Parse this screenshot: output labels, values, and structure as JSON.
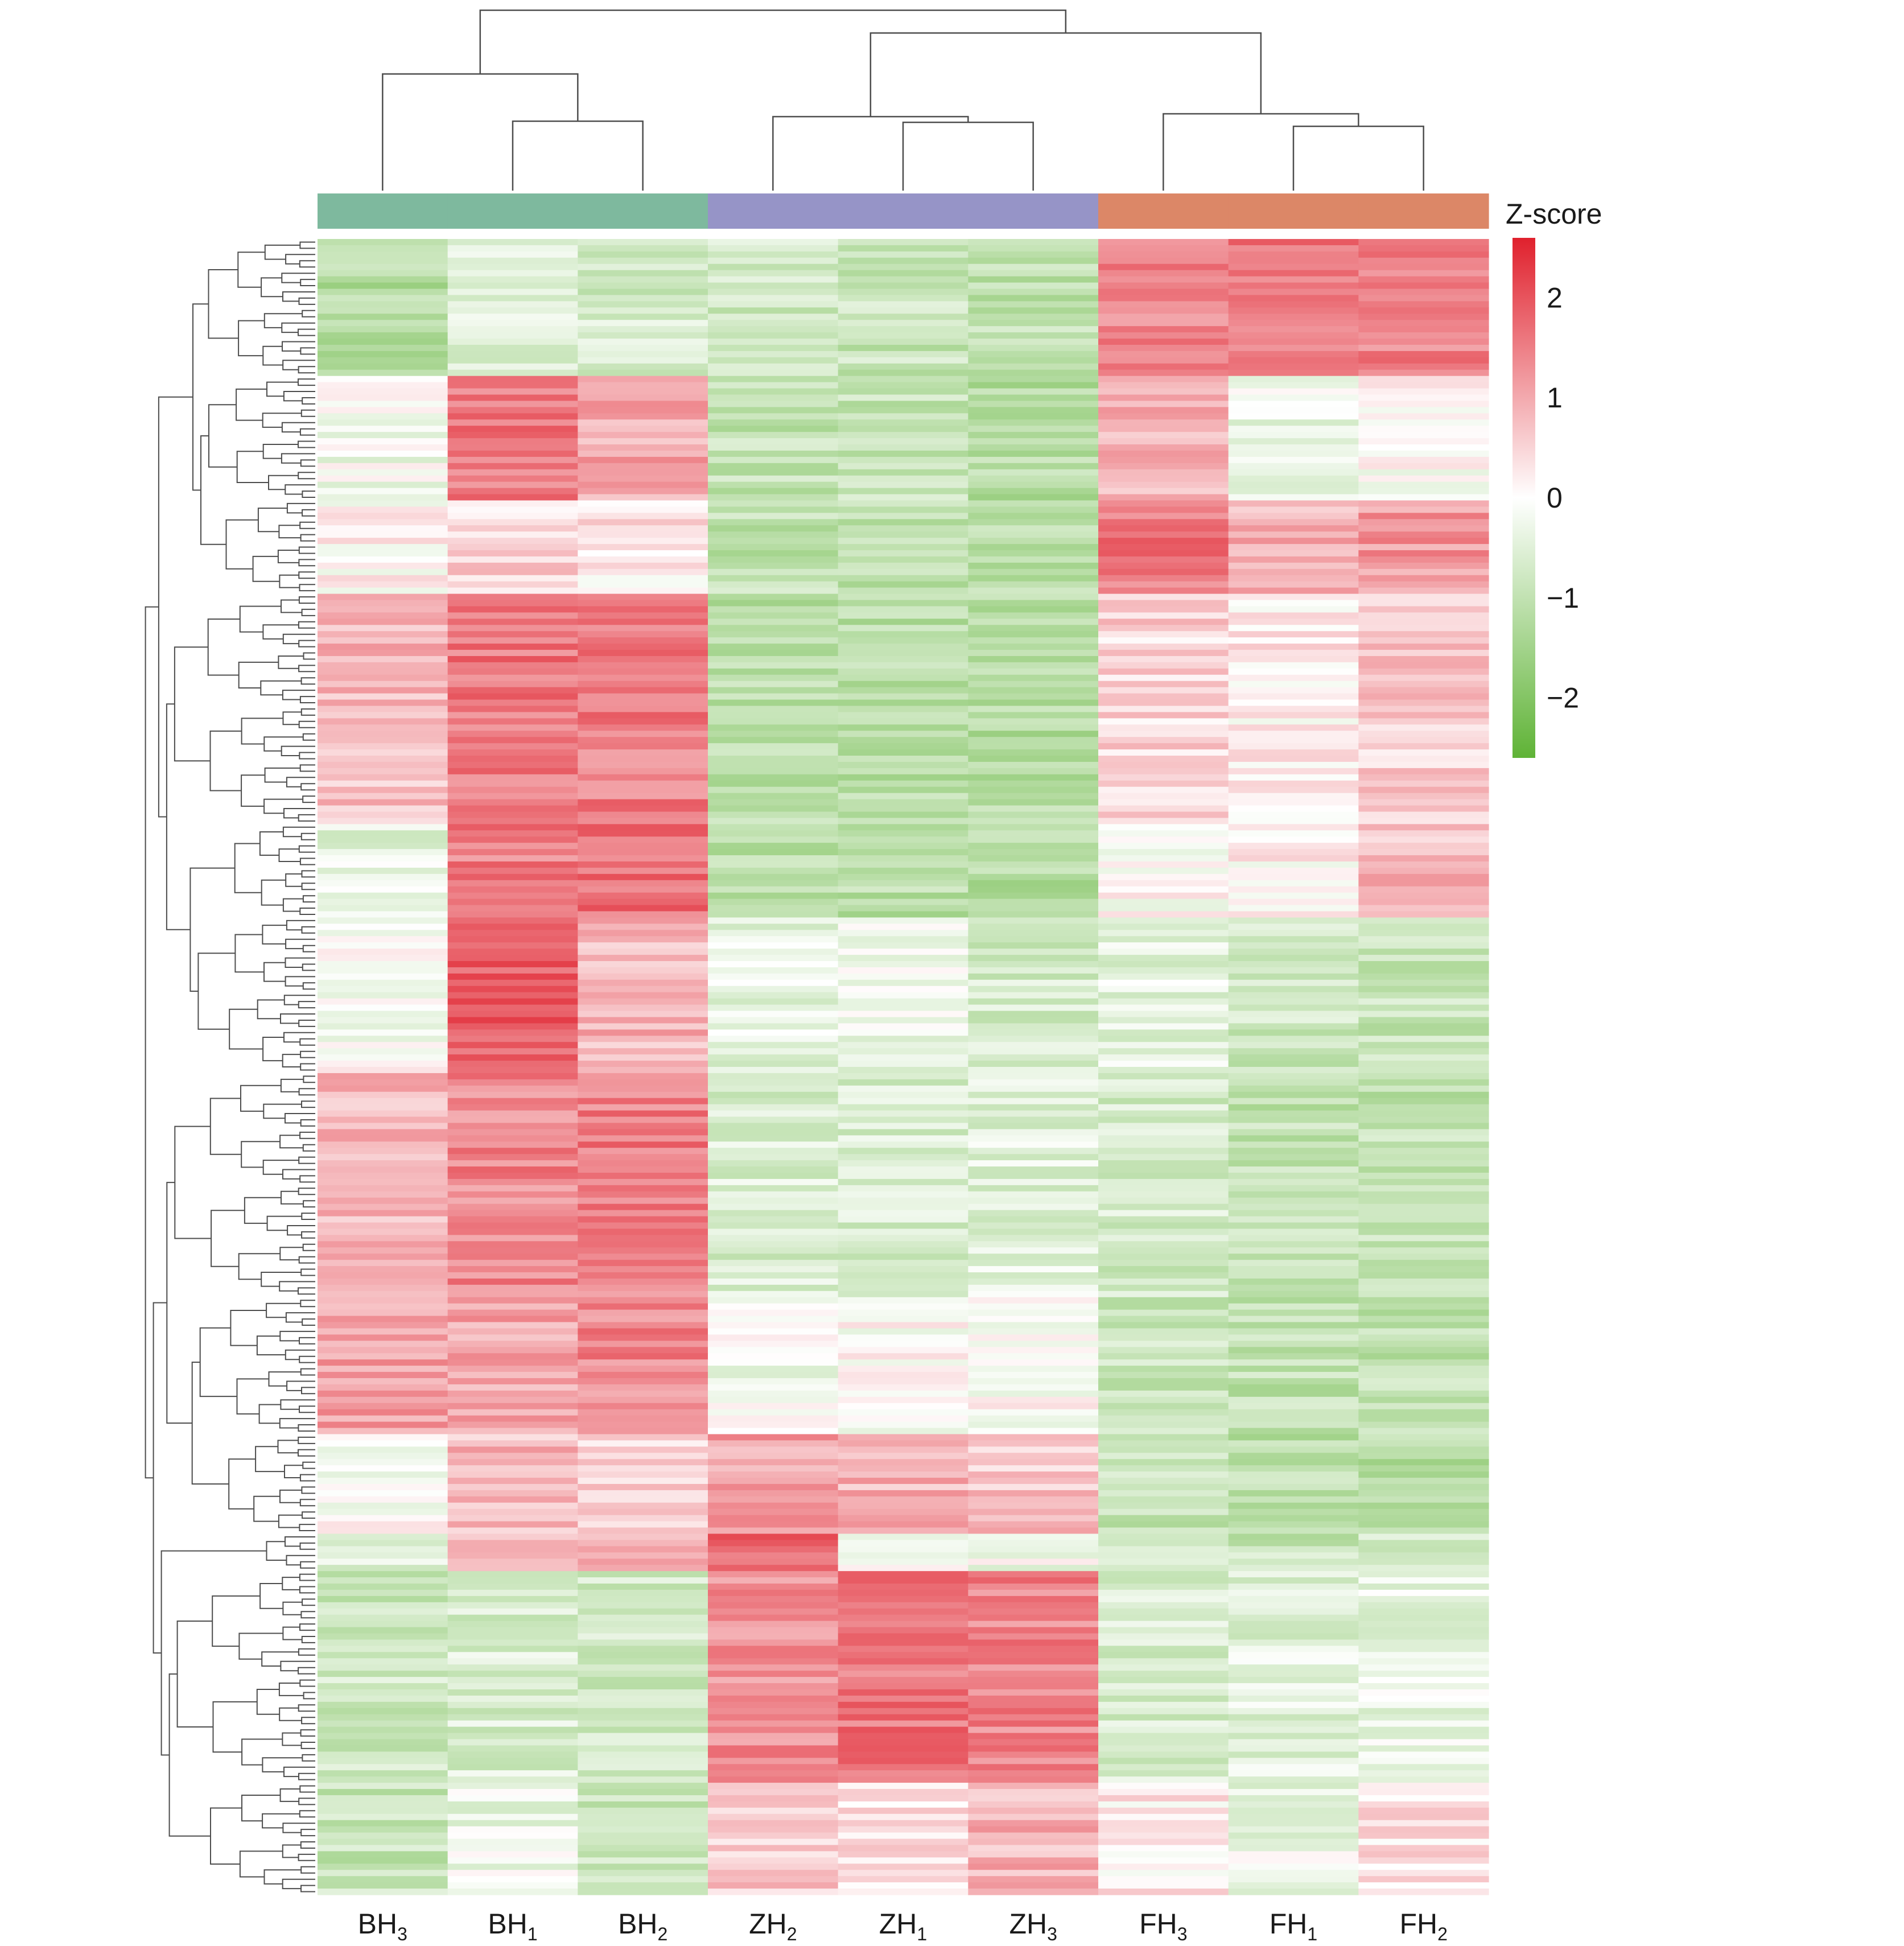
{
  "chart_data": {
    "type": "heatmap",
    "columns": [
      {
        "base": "BH",
        "sub": "3",
        "group": "BH"
      },
      {
        "base": "BH",
        "sub": "1",
        "group": "BH"
      },
      {
        "base": "BH",
        "sub": "2",
        "group": "BH"
      },
      {
        "base": "ZH",
        "sub": "2",
        "group": "ZH"
      },
      {
        "base": "ZH",
        "sub": "1",
        "group": "ZH"
      },
      {
        "base": "ZH",
        "sub": "3",
        "group": "ZH"
      },
      {
        "base": "FH",
        "sub": "3",
        "group": "FH"
      },
      {
        "base": "FH",
        "sub": "1",
        "group": "FH"
      },
      {
        "base": "FH",
        "sub": "2",
        "group": "FH"
      }
    ],
    "groups": [
      {
        "name": "BH",
        "color": "#7eb99e"
      },
      {
        "name": "ZH",
        "color": "#9694c7"
      },
      {
        "name": "FH",
        "color": "#dc8767"
      }
    ],
    "legend": {
      "title": "Z-score",
      "ticks": [
        "2",
        "1",
        "0",
        "−1",
        "−2"
      ],
      "tick_values": [
        2,
        1,
        0,
        -1,
        -2
      ],
      "range": [
        -2.6,
        2.6
      ],
      "colors": {
        "high": "#e0212d",
        "mid": "#ffffff",
        "low": "#5fb336"
      }
    },
    "row_blocks": [
      {
        "rows": 22,
        "values": [
          -1.2,
          -0.5,
          -0.7,
          -0.8,
          -0.9,
          -1.0,
          1.5,
          1.6,
          1.4
        ]
      },
      {
        "rows": 20,
        "values": [
          -0.2,
          1.6,
          1.0,
          -1.0,
          -0.9,
          -1.2,
          0.9,
          -0.3,
          0.0
        ]
      },
      {
        "rows": 15,
        "values": [
          0.1,
          0.5,
          0.3,
          -1.0,
          -1.0,
          -1.1,
          1.6,
          0.9,
          1.2
        ]
      },
      {
        "rows": 37,
        "values": [
          0.8,
          1.6,
          1.5,
          -1.1,
          -1.1,
          -1.2,
          0.5,
          0.2,
          0.6
        ]
      },
      {
        "rows": 15,
        "values": [
          -0.4,
          1.5,
          1.7,
          -1.1,
          -1.1,
          -1.2,
          0.0,
          0.1,
          0.8
        ]
      },
      {
        "rows": 25,
        "values": [
          -0.1,
          1.9,
          0.9,
          -0.4,
          -0.3,
          -0.7,
          -0.4,
          -0.8,
          -0.9
        ]
      },
      {
        "rows": 36,
        "values": [
          0.9,
          1.4,
          1.5,
          -0.6,
          -0.6,
          -0.5,
          -0.7,
          -1.0,
          -1.0
        ]
      },
      {
        "rows": 22,
        "values": [
          1.1,
          1.1,
          1.4,
          -0.2,
          0.0,
          0.0,
          -0.9,
          -1.0,
          -1.0
        ]
      },
      {
        "rows": 16,
        "values": [
          0.0,
          0.8,
          0.5,
          1.1,
          0.9,
          0.7,
          -0.9,
          -1.1,
          -1.2
        ]
      },
      {
        "rows": 6,
        "values": [
          -0.6,
          1.0,
          1.1,
          1.8,
          -0.2,
          -0.2,
          -0.8,
          -0.9,
          -0.6
        ]
      },
      {
        "rows": 34,
        "values": [
          -0.8,
          -0.6,
          -0.7,
          1.3,
          1.6,
          1.4,
          -0.6,
          -0.5,
          -0.4
        ]
      },
      {
        "rows": 18,
        "values": [
          -0.9,
          -0.3,
          -0.8,
          0.6,
          0.3,
          0.9,
          0.2,
          -0.3,
          0.3
        ]
      }
    ]
  }
}
